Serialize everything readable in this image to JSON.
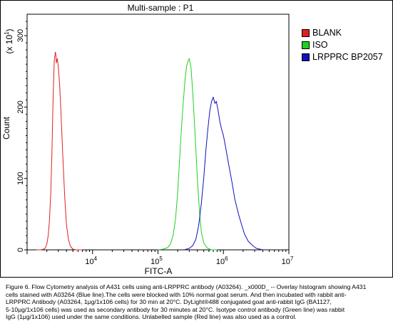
{
  "chart_data": {
    "type": "line",
    "title": "Multi-sample : P1",
    "xlabel": "FITC-A",
    "ylabel": "Count",
    "y_multiplier_label": "(x 10",
    "y_multiplier_exp": "1",
    "y_multiplier_close": ")",
    "xscale": "log",
    "xlim": [
      1000,
      10000000
    ],
    "ylim": [
      0,
      330
    ],
    "x_tick_bases": [
      "10",
      "10",
      "10",
      "10"
    ],
    "x_tick_exps": [
      "4",
      "5",
      "6",
      "7"
    ],
    "x_tick_values": [
      10000,
      100000,
      1000000,
      10000000
    ],
    "y_ticks": [
      0,
      100,
      200,
      300
    ],
    "y_tick_labels": [
      "0",
      "100",
      "200",
      "300"
    ],
    "grid": false,
    "legend_position": "top-right",
    "series": [
      {
        "name": "BLANK",
        "color": "#e02020",
        "points": [
          [
            1400,
            0
          ],
          [
            1600,
            0
          ],
          [
            1800,
            1
          ],
          [
            1900,
            3
          ],
          [
            2000,
            8
          ],
          [
            2100,
            20
          ],
          [
            2200,
            42
          ],
          [
            2300,
            80
          ],
          [
            2400,
            140
          ],
          [
            2500,
            215
          ],
          [
            2600,
            265
          ],
          [
            2700,
            277
          ],
          [
            2750,
            274
          ],
          [
            2800,
            262
          ],
          [
            2900,
            268
          ],
          [
            3000,
            255
          ],
          [
            3150,
            230
          ],
          [
            3300,
            190
          ],
          [
            3500,
            135
          ],
          [
            3750,
            75
          ],
          [
            4000,
            35
          ],
          [
            4300,
            14
          ],
          [
            4600,
            5
          ],
          [
            5000,
            1
          ],
          [
            5600,
            0
          ],
          [
            7000,
            0
          ]
        ]
      },
      {
        "name": "ISO",
        "color": "#20d020",
        "points": [
          [
            100000,
            0
          ],
          [
            120000,
            1
          ],
          [
            140000,
            3
          ],
          [
            155000,
            8
          ],
          [
            170000,
            20
          ],
          [
            185000,
            42
          ],
          [
            200000,
            80
          ],
          [
            215000,
            130
          ],
          [
            230000,
            175
          ],
          [
            245000,
            210
          ],
          [
            260000,
            240
          ],
          [
            275000,
            258
          ],
          [
            290000,
            265
          ],
          [
            300000,
            268
          ],
          [
            320000,
            255
          ],
          [
            340000,
            220
          ],
          [
            370000,
            160
          ],
          [
            400000,
            100
          ],
          [
            430000,
            55
          ],
          [
            460000,
            25
          ],
          [
            500000,
            10
          ],
          [
            560000,
            3
          ],
          [
            650000,
            0
          ],
          [
            800000,
            0
          ]
        ]
      },
      {
        "name": "LRPPRC BP2057",
        "color": "#1010c0",
        "points": [
          [
            250000,
            0
          ],
          [
            300000,
            2
          ],
          [
            340000,
            6
          ],
          [
            380000,
            15
          ],
          [
            420000,
            35
          ],
          [
            460000,
            65
          ],
          [
            500000,
            100
          ],
          [
            540000,
            140
          ],
          [
            580000,
            170
          ],
          [
            620000,
            195
          ],
          [
            660000,
            208
          ],
          [
            700000,
            214
          ],
          [
            740000,
            205
          ],
          [
            780000,
            208
          ],
          [
            830000,
            195
          ],
          [
            880000,
            180
          ],
          [
            930000,
            170
          ],
          [
            1000000,
            160
          ],
          [
            1100000,
            140
          ],
          [
            1200000,
            120
          ],
          [
            1350000,
            95
          ],
          [
            1500000,
            70
          ],
          [
            1700000,
            50
          ],
          [
            1900000,
            35
          ],
          [
            2100000,
            22
          ],
          [
            2400000,
            12
          ],
          [
            2800000,
            6
          ],
          [
            3200000,
            2
          ],
          [
            4000000,
            0
          ]
        ]
      }
    ]
  },
  "caption": "Figure 6. Flow Cytometry analysis of A431 cells using anti-LRPPRC antibody (A03264). _x000D_ -- Overlay histogram showing A431\ncells stained with A03264 (Blue line).The cells were blocked with 10% normal goat serum. And then incubated with rabbit anti-\nLRPPRC Antibody (A03264, 1μg/1x106 cells) for 30 min at 20°C. DyLight®488 conjugated goat anti-rabbit IgG (BA1127,\n5-10μg/1x106 cells) was used as secondary antibody for 30 minutes at 20°C. Isotype control antibody (Green line) was rabbit\nIgG (1μg/1x106) used under the same conditions. Unlabelled sample (Red line) was also used as a control."
}
